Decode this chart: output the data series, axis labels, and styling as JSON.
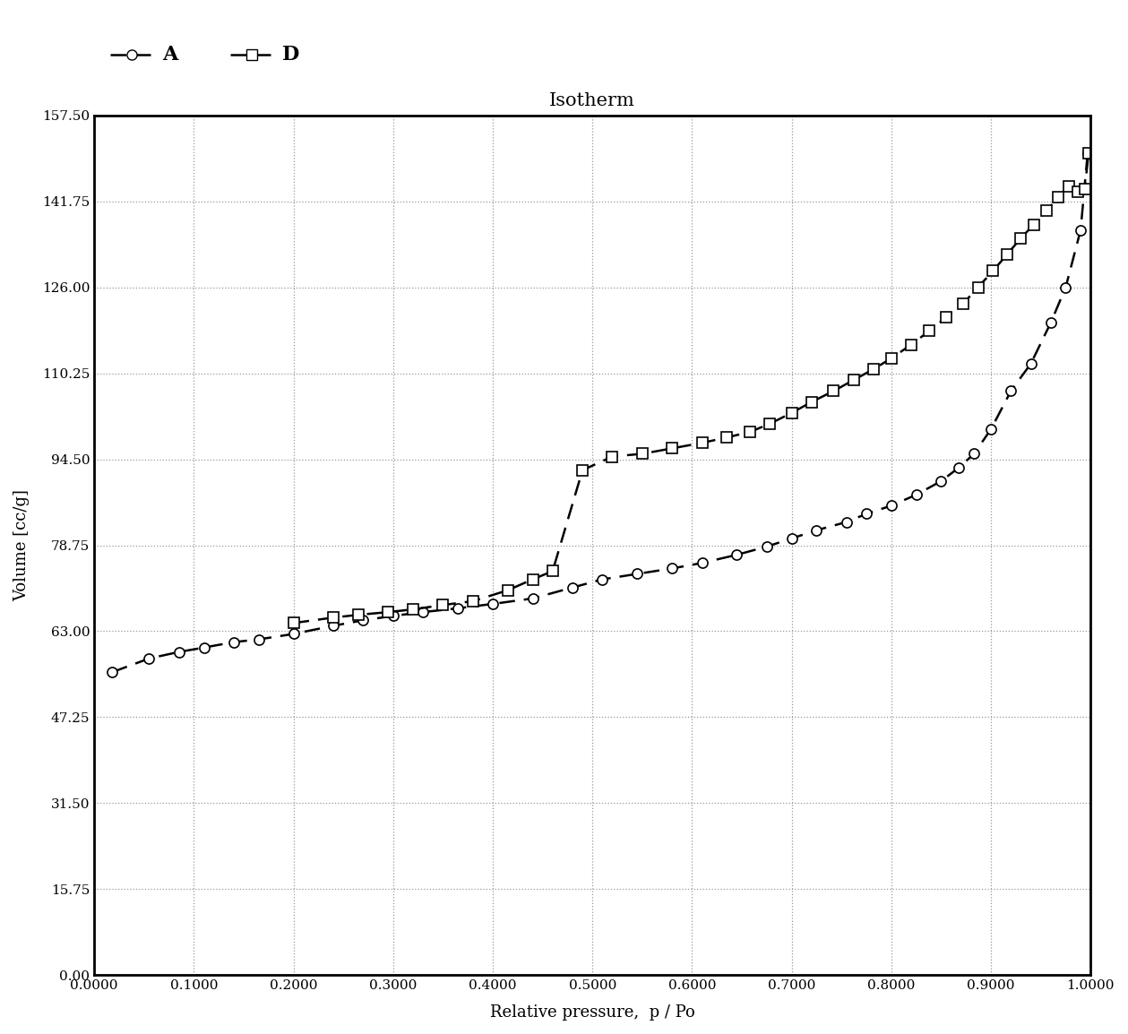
{
  "title": "Isotherm",
  "xlabel": "Relative pressure,  p / Po",
  "ylabel": "Volume [cc/g]",
  "xlim": [
    0.0,
    1.0
  ],
  "ylim": [
    0.0,
    157.5
  ],
  "yticks": [
    0.0,
    15.75,
    31.5,
    47.25,
    63.0,
    78.75,
    94.5,
    110.25,
    126.0,
    141.75,
    157.5
  ],
  "xticks": [
    0.0,
    0.1,
    0.2,
    0.3,
    0.4,
    0.5,
    0.6,
    0.7,
    0.8,
    0.9,
    1.0
  ],
  "xtick_labels": [
    "0.0000",
    "0.1000",
    "0.2000",
    "0.3000",
    "0.4000",
    "0.5000",
    "0.6000",
    "0.7000",
    "0.8000",
    "0.9000",
    "1.0000"
  ],
  "ytick_labels": [
    "0.00",
    "15.75",
    "31.50",
    "47.25",
    "63.00",
    "78.75",
    "94.50",
    "110.25",
    "126.00",
    "141.75",
    "157.50"
  ],
  "series_A": {
    "label": "A",
    "marker": "o",
    "color": "#000000",
    "markersize": 8,
    "markerfacecolor": "white",
    "x": [
      0.018,
      0.055,
      0.085,
      0.11,
      0.14,
      0.165,
      0.2,
      0.24,
      0.27,
      0.3,
      0.33,
      0.365,
      0.4,
      0.44,
      0.48,
      0.51,
      0.545,
      0.58,
      0.61,
      0.645,
      0.675,
      0.7,
      0.725,
      0.755,
      0.775,
      0.8,
      0.825,
      0.85,
      0.868,
      0.883,
      0.9,
      0.92,
      0.94,
      0.96,
      0.975,
      0.99,
      0.997
    ],
    "y": [
      55.5,
      58.0,
      59.2,
      60.0,
      61.0,
      61.5,
      62.5,
      64.0,
      65.0,
      65.8,
      66.5,
      67.2,
      68.0,
      69.0,
      71.0,
      72.5,
      73.5,
      74.5,
      75.5,
      77.0,
      78.5,
      80.0,
      81.5,
      83.0,
      84.5,
      86.0,
      88.0,
      90.5,
      93.0,
      95.5,
      100.0,
      107.0,
      112.0,
      119.5,
      126.0,
      136.5,
      150.5
    ]
  },
  "series_D": {
    "label": "D",
    "marker": "s",
    "color": "#000000",
    "markersize": 8,
    "markerfacecolor": "white",
    "x": [
      0.2,
      0.24,
      0.265,
      0.295,
      0.32,
      0.35,
      0.38,
      0.415,
      0.44,
      0.46,
      0.49,
      0.52,
      0.55,
      0.58,
      0.61,
      0.635,
      0.658,
      0.678,
      0.7,
      0.72,
      0.742,
      0.762,
      0.782,
      0.8,
      0.82,
      0.838,
      0.855,
      0.872,
      0.887,
      0.902,
      0.916,
      0.93,
      0.943,
      0.956,
      0.967,
      0.978,
      0.987,
      0.994,
      0.998
    ],
    "y": [
      64.5,
      65.5,
      66.0,
      66.5,
      67.0,
      67.8,
      68.5,
      70.5,
      72.5,
      74.0,
      92.5,
      95.0,
      95.5,
      96.5,
      97.5,
      98.5,
      99.5,
      101.0,
      103.0,
      105.0,
      107.0,
      109.0,
      111.0,
      113.0,
      115.5,
      118.0,
      120.5,
      123.0,
      126.0,
      129.0,
      132.0,
      135.0,
      137.5,
      140.0,
      142.5,
      144.5,
      143.5,
      144.0,
      150.5
    ]
  },
  "background_color": "#ffffff",
  "grid_color": "#999999",
  "title_fontsize": 15,
  "label_fontsize": 13,
  "tick_fontsize": 11
}
